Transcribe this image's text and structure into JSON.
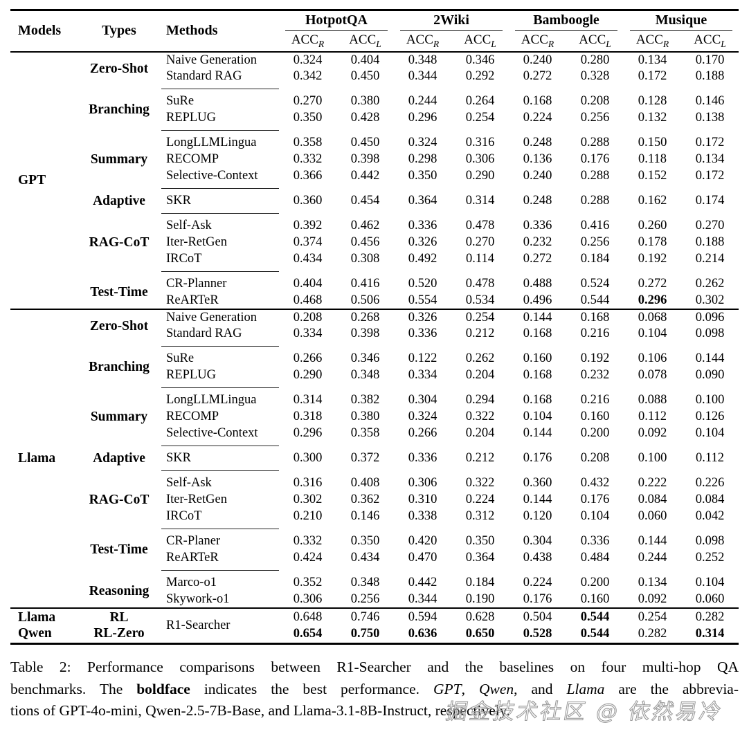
{
  "table": {
    "headers": {
      "models": "Models",
      "types": "Types",
      "methods": "Methods",
      "acc": "ACC",
      "subR": "R",
      "subL": "L"
    },
    "benchmarks": [
      {
        "name": "HotpotQA"
      },
      {
        "name": "2Wiki"
      },
      {
        "name": "Bamboogle"
      },
      {
        "name": "Musique"
      }
    ],
    "sections": [
      {
        "model_lines": [
          "GPT"
        ],
        "groups": [
          {
            "type_lines": [
              "Zero-Shot"
            ],
            "rows": [
              {
                "method": "Naive Generation",
                "values": [
                  "0.324",
                  "0.404",
                  "0.348",
                  "0.346",
                  "0.240",
                  "0.280",
                  "0.134",
                  "0.170"
                ],
                "bold": []
              },
              {
                "method": "Standard RAG",
                "values": [
                  "0.342",
                  "0.450",
                  "0.344",
                  "0.292",
                  "0.272",
                  "0.328",
                  "0.172",
                  "0.188"
                ],
                "bold": []
              }
            ]
          },
          {
            "type_lines": [
              "Branching"
            ],
            "rows": [
              {
                "method": "SuRe",
                "values": [
                  "0.270",
                  "0.380",
                  "0.244",
                  "0.264",
                  "0.168",
                  "0.208",
                  "0.128",
                  "0.146"
                ],
                "bold": []
              },
              {
                "method": "REPLUG",
                "values": [
                  "0.350",
                  "0.428",
                  "0.296",
                  "0.254",
                  "0.224",
                  "0.256",
                  "0.132",
                  "0.138"
                ],
                "bold": []
              }
            ]
          },
          {
            "type_lines": [
              "Summary"
            ],
            "rows": [
              {
                "method": "LongLLMLingua",
                "values": [
                  "0.358",
                  "0.450",
                  "0.324",
                  "0.316",
                  "0.248",
                  "0.288",
                  "0.150",
                  "0.172"
                ],
                "bold": []
              },
              {
                "method": "RECOMP",
                "values": [
                  "0.332",
                  "0.398",
                  "0.298",
                  "0.306",
                  "0.136",
                  "0.176",
                  "0.118",
                  "0.134"
                ],
                "bold": []
              },
              {
                "method": "Selective-Context",
                "values": [
                  "0.366",
                  "0.442",
                  "0.350",
                  "0.290",
                  "0.240",
                  "0.288",
                  "0.152",
                  "0.172"
                ],
                "bold": []
              }
            ]
          },
          {
            "type_lines": [
              "Adaptive"
            ],
            "rows": [
              {
                "method": "SKR",
                "values": [
                  "0.360",
                  "0.454",
                  "0.364",
                  "0.314",
                  "0.248",
                  "0.288",
                  "0.162",
                  "0.174"
                ],
                "bold": []
              }
            ]
          },
          {
            "type_lines": [
              "RAG-CoT"
            ],
            "rows": [
              {
                "method": "Self-Ask",
                "values": [
                  "0.392",
                  "0.462",
                  "0.336",
                  "0.478",
                  "0.336",
                  "0.416",
                  "0.260",
                  "0.270"
                ],
                "bold": []
              },
              {
                "method": "Iter-RetGen",
                "values": [
                  "0.374",
                  "0.456",
                  "0.326",
                  "0.270",
                  "0.232",
                  "0.256",
                  "0.178",
                  "0.188"
                ],
                "bold": []
              },
              {
                "method": "IRCoT",
                "values": [
                  "0.434",
                  "0.308",
                  "0.492",
                  "0.114",
                  "0.272",
                  "0.184",
                  "0.192",
                  "0.214"
                ],
                "bold": []
              }
            ]
          },
          {
            "type_lines": [
              "Test-Time"
            ],
            "rows": [
              {
                "method": "CR-Planner",
                "values": [
                  "0.404",
                  "0.416",
                  "0.520",
                  "0.478",
                  "0.488",
                  "0.524",
                  "0.272",
                  "0.262"
                ],
                "bold": []
              },
              {
                "method": "ReARTeR",
                "values": [
                  "0.468",
                  "0.506",
                  "0.554",
                  "0.534",
                  "0.496",
                  "0.544",
                  "0.296",
                  "0.302"
                ],
                "bold": [
                  6
                ]
              }
            ]
          }
        ]
      },
      {
        "model_lines": [
          "Llama"
        ],
        "groups": [
          {
            "type_lines": [
              "Zero-Shot"
            ],
            "rows": [
              {
                "method": "Naive Generation",
                "values": [
                  "0.208",
                  "0.268",
                  "0.326",
                  "0.254",
                  "0.144",
                  "0.168",
                  "0.068",
                  "0.096"
                ],
                "bold": []
              },
              {
                "method": "Standard RAG",
                "values": [
                  "0.334",
                  "0.398",
                  "0.336",
                  "0.212",
                  "0.168",
                  "0.216",
                  "0.104",
                  "0.098"
                ],
                "bold": []
              }
            ]
          },
          {
            "type_lines": [
              "Branching"
            ],
            "rows": [
              {
                "method": "SuRe",
                "values": [
                  "0.266",
                  "0.346",
                  "0.122",
                  "0.262",
                  "0.160",
                  "0.192",
                  "0.106",
                  "0.144"
                ],
                "bold": []
              },
              {
                "method": "REPLUG",
                "values": [
                  "0.290",
                  "0.348",
                  "0.334",
                  "0.204",
                  "0.168",
                  "0.232",
                  "0.078",
                  "0.090"
                ],
                "bold": []
              }
            ]
          },
          {
            "type_lines": [
              "Summary"
            ],
            "rows": [
              {
                "method": "LongLLMLingua",
                "values": [
                  "0.314",
                  "0.382",
                  "0.304",
                  "0.294",
                  "0.168",
                  "0.216",
                  "0.088",
                  "0.100"
                ],
                "bold": []
              },
              {
                "method": "RECOMP",
                "values": [
                  "0.318",
                  "0.380",
                  "0.324",
                  "0.322",
                  "0.104",
                  "0.160",
                  "0.112",
                  "0.126"
                ],
                "bold": []
              },
              {
                "method": "Selective-Context",
                "values": [
                  "0.296",
                  "0.358",
                  "0.266",
                  "0.204",
                  "0.144",
                  "0.200",
                  "0.092",
                  "0.104"
                ],
                "bold": []
              }
            ]
          },
          {
            "type_lines": [
              "Adaptive"
            ],
            "rows": [
              {
                "method": "SKR",
                "values": [
                  "0.300",
                  "0.372",
                  "0.336",
                  "0.212",
                  "0.176",
                  "0.208",
                  "0.100",
                  "0.112"
                ],
                "bold": []
              }
            ]
          },
          {
            "type_lines": [
              "RAG-CoT"
            ],
            "rows": [
              {
                "method": "Self-Ask",
                "values": [
                  "0.316",
                  "0.408",
                  "0.306",
                  "0.322",
                  "0.360",
                  "0.432",
                  "0.222",
                  "0.226"
                ],
                "bold": []
              },
              {
                "method": "Iter-RetGen",
                "values": [
                  "0.302",
                  "0.362",
                  "0.310",
                  "0.224",
                  "0.144",
                  "0.176",
                  "0.084",
                  "0.084"
                ],
                "bold": []
              },
              {
                "method": "IRCoT",
                "values": [
                  "0.210",
                  "0.146",
                  "0.338",
                  "0.312",
                  "0.120",
                  "0.104",
                  "0.060",
                  "0.042"
                ],
                "bold": []
              }
            ]
          },
          {
            "type_lines": [
              "Test-Time"
            ],
            "rows": [
              {
                "method": "CR-Planer",
                "values": [
                  "0.332",
                  "0.350",
                  "0.420",
                  "0.350",
                  "0.304",
                  "0.336",
                  "0.144",
                  "0.098"
                ],
                "bold": []
              },
              {
                "method": "ReARTeR",
                "values": [
                  "0.424",
                  "0.434",
                  "0.470",
                  "0.364",
                  "0.438",
                  "0.484",
                  "0.244",
                  "0.252"
                ],
                "bold": []
              }
            ]
          },
          {
            "type_lines": [
              "Reasoning"
            ],
            "rows": [
              {
                "method": "Marco-o1",
                "values": [
                  "0.352",
                  "0.348",
                  "0.442",
                  "0.184",
                  "0.224",
                  "0.200",
                  "0.134",
                  "0.104"
                ],
                "bold": []
              },
              {
                "method": "Skywork-o1",
                "values": [
                  "0.306",
                  "0.256",
                  "0.344",
                  "0.190",
                  "0.176",
                  "0.160",
                  "0.092",
                  "0.060"
                ],
                "bold": []
              }
            ]
          }
        ]
      },
      {
        "model_lines": [
          "Llama",
          "Qwen"
        ],
        "groups": [
          {
            "type_lines": [
              "RL",
              "RL-Zero"
            ],
            "rows": [
              {
                "method": "R1-Searcher",
                "method_span": 2,
                "values": [
                  "0.648",
                  "0.746",
                  "0.594",
                  "0.628",
                  "0.504",
                  "0.544",
                  "0.254",
                  "0.282"
                ],
                "bold": [
                  5
                ]
              },
              {
                "values": [
                  "0.654",
                  "0.750",
                  "0.636",
                  "0.650",
                  "0.528",
                  "0.544",
                  "0.282",
                  "0.314"
                ],
                "bold": [
                  0,
                  1,
                  2,
                  3,
                  4,
                  5,
                  7
                ]
              }
            ]
          }
        ]
      }
    ]
  },
  "caption": {
    "lines": [
      [
        {
          "t": "Table 2: Performance comparisons between R1-Searcher and the baselines on four multi-hop QA",
          "s": "n"
        }
      ],
      [
        {
          "t": "benchmarks. The ",
          "s": "n"
        },
        {
          "t": "boldface",
          "s": "b"
        },
        {
          "t": " indicates the best performance. ",
          "s": "n"
        },
        {
          "t": "GPT",
          "s": "i"
        },
        {
          "t": ", ",
          "s": "n"
        },
        {
          "t": "Qwen",
          "s": "i"
        },
        {
          "t": ", and ",
          "s": "n"
        },
        {
          "t": "Llama",
          "s": "i"
        },
        {
          "t": " are the abbrevia-",
          "s": "n"
        }
      ],
      [
        {
          "t": "tions of GPT-4o-mini, Qwen-2.5-7B-Base, and Llama-3.1-8B-Instruct, respectively.",
          "s": "n"
        }
      ]
    ]
  },
  "watermark": "掘金技术社区 @ 依然易冷"
}
